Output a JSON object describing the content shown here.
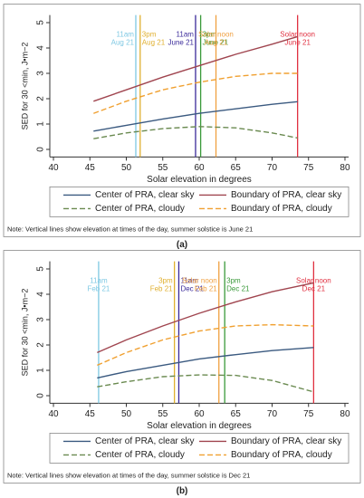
{
  "chart_data": [
    {
      "type": "line",
      "y_label": "SED for 30 <min, J•m−2",
      "x_label": "Solar elevation in degrees",
      "xlim": [
        39.5,
        80.5
      ],
      "xticks": [
        40,
        45,
        50,
        55,
        60,
        65,
        70,
        75,
        80
      ],
      "ylim": [
        -0.3,
        5.3
      ],
      "yticks": [
        0,
        1,
        2,
        3,
        4,
        5
      ],
      "x": [
        45.5,
        50,
        55,
        60,
        65,
        70,
        73.5
      ],
      "series": [
        {
          "name": "Center of PRA, clear sky",
          "color": "#3b5a80",
          "dashed": false,
          "values": [
            0.72,
            0.95,
            1.2,
            1.42,
            1.6,
            1.78,
            1.88
          ]
        },
        {
          "name": "Boundary of PRA, clear sky",
          "color": "#a0454f",
          "dashed": false,
          "values": [
            1.9,
            2.35,
            2.85,
            3.3,
            3.75,
            4.15,
            4.45
          ]
        },
        {
          "name": "Center of PRA, cloudy",
          "color": "#6a8a50",
          "dashed": true,
          "values": [
            0.42,
            0.65,
            0.82,
            0.9,
            0.85,
            0.65,
            0.45
          ]
        },
        {
          "name": "Boundary of PRA, cloudy",
          "color": "#f0a030",
          "dashed": true,
          "values": [
            1.42,
            1.9,
            2.35,
            2.65,
            2.88,
            3.0,
            3.0
          ]
        }
      ],
      "vlines": [
        {
          "x": 51.3,
          "label": [
            "11am",
            "Aug 21"
          ],
          "color": "#7ec8e3"
        },
        {
          "x": 51.9,
          "label": [
            "3pm",
            "Aug 21"
          ],
          "color": "#e0b030"
        },
        {
          "x": 59.5,
          "label": [
            "11am",
            "June 21"
          ],
          "color": "#3a2a9a"
        },
        {
          "x": 60.2,
          "label": [
            "3pm",
            "June 21"
          ],
          "color": "#3a9a3a"
        },
        {
          "x": 62.3,
          "label": [
            "Solar noon",
            "Aug 21"
          ],
          "color": "#f0a040"
        },
        {
          "x": 73.5,
          "label": [
            "Solar noon",
            "June 21"
          ],
          "color": "#e03040"
        }
      ],
      "note": "Note: Vertical lines show elevation at times of the day, summer solstice is June 21",
      "caption": "(a)"
    },
    {
      "type": "line",
      "y_label": "SED for 30 <min, J•m−2",
      "x_label": "Solar elevation in degrees",
      "xlim": [
        39.5,
        80.5
      ],
      "xticks": [
        40,
        45,
        50,
        55,
        60,
        65,
        70,
        75,
        80
      ],
      "ylim": [
        -0.3,
        5.3
      ],
      "yticks": [
        0,
        1,
        2,
        3,
        4,
        5
      ],
      "x": [
        46,
        50,
        55,
        60,
        65,
        70,
        75.7
      ],
      "series": [
        {
          "name": "Center of PRA, clear sky",
          "color": "#3b5a80",
          "dashed": false,
          "values": [
            0.7,
            0.95,
            1.2,
            1.45,
            1.62,
            1.78,
            1.9
          ]
        },
        {
          "name": "Boundary of PRA, clear sky",
          "color": "#a0454f",
          "dashed": false,
          "values": [
            1.7,
            2.2,
            2.75,
            3.25,
            3.7,
            4.1,
            4.45
          ]
        },
        {
          "name": "Center of PRA, cloudy",
          "color": "#6a8a50",
          "dashed": true,
          "values": [
            0.35,
            0.55,
            0.75,
            0.82,
            0.8,
            0.6,
            0.15
          ]
        },
        {
          "name": "Boundary of PRA, cloudy",
          "color": "#f0a030",
          "dashed": true,
          "values": [
            1.2,
            1.7,
            2.2,
            2.55,
            2.75,
            2.8,
            2.75
          ]
        }
      ],
      "vlines": [
        {
          "x": 46.2,
          "label": [
            "11am",
            "Feb 21"
          ],
          "color": "#7ec8e3"
        },
        {
          "x": 56.6,
          "label": [
            "3pm",
            "Feb 21"
          ],
          "color": "#e0b030"
        },
        {
          "x": 57.2,
          "label": [
            "11am",
            "Dec 21"
          ],
          "color": "#3a2a9a"
        },
        {
          "x": 62.7,
          "label": [
            "Solar noon",
            "Feb 21"
          ],
          "color": "#f0a040"
        },
        {
          "x": 63.5,
          "label": [
            "3pm",
            "Dec 21"
          ],
          "color": "#3a9a3a"
        },
        {
          "x": 75.7,
          "label": [
            "Solar noon",
            "Dec 21"
          ],
          "color": "#e03040"
        }
      ],
      "note": "Note: Vertical lines show elevation at times of the day, summer solstice is Dec 21",
      "caption": "(b)"
    }
  ]
}
